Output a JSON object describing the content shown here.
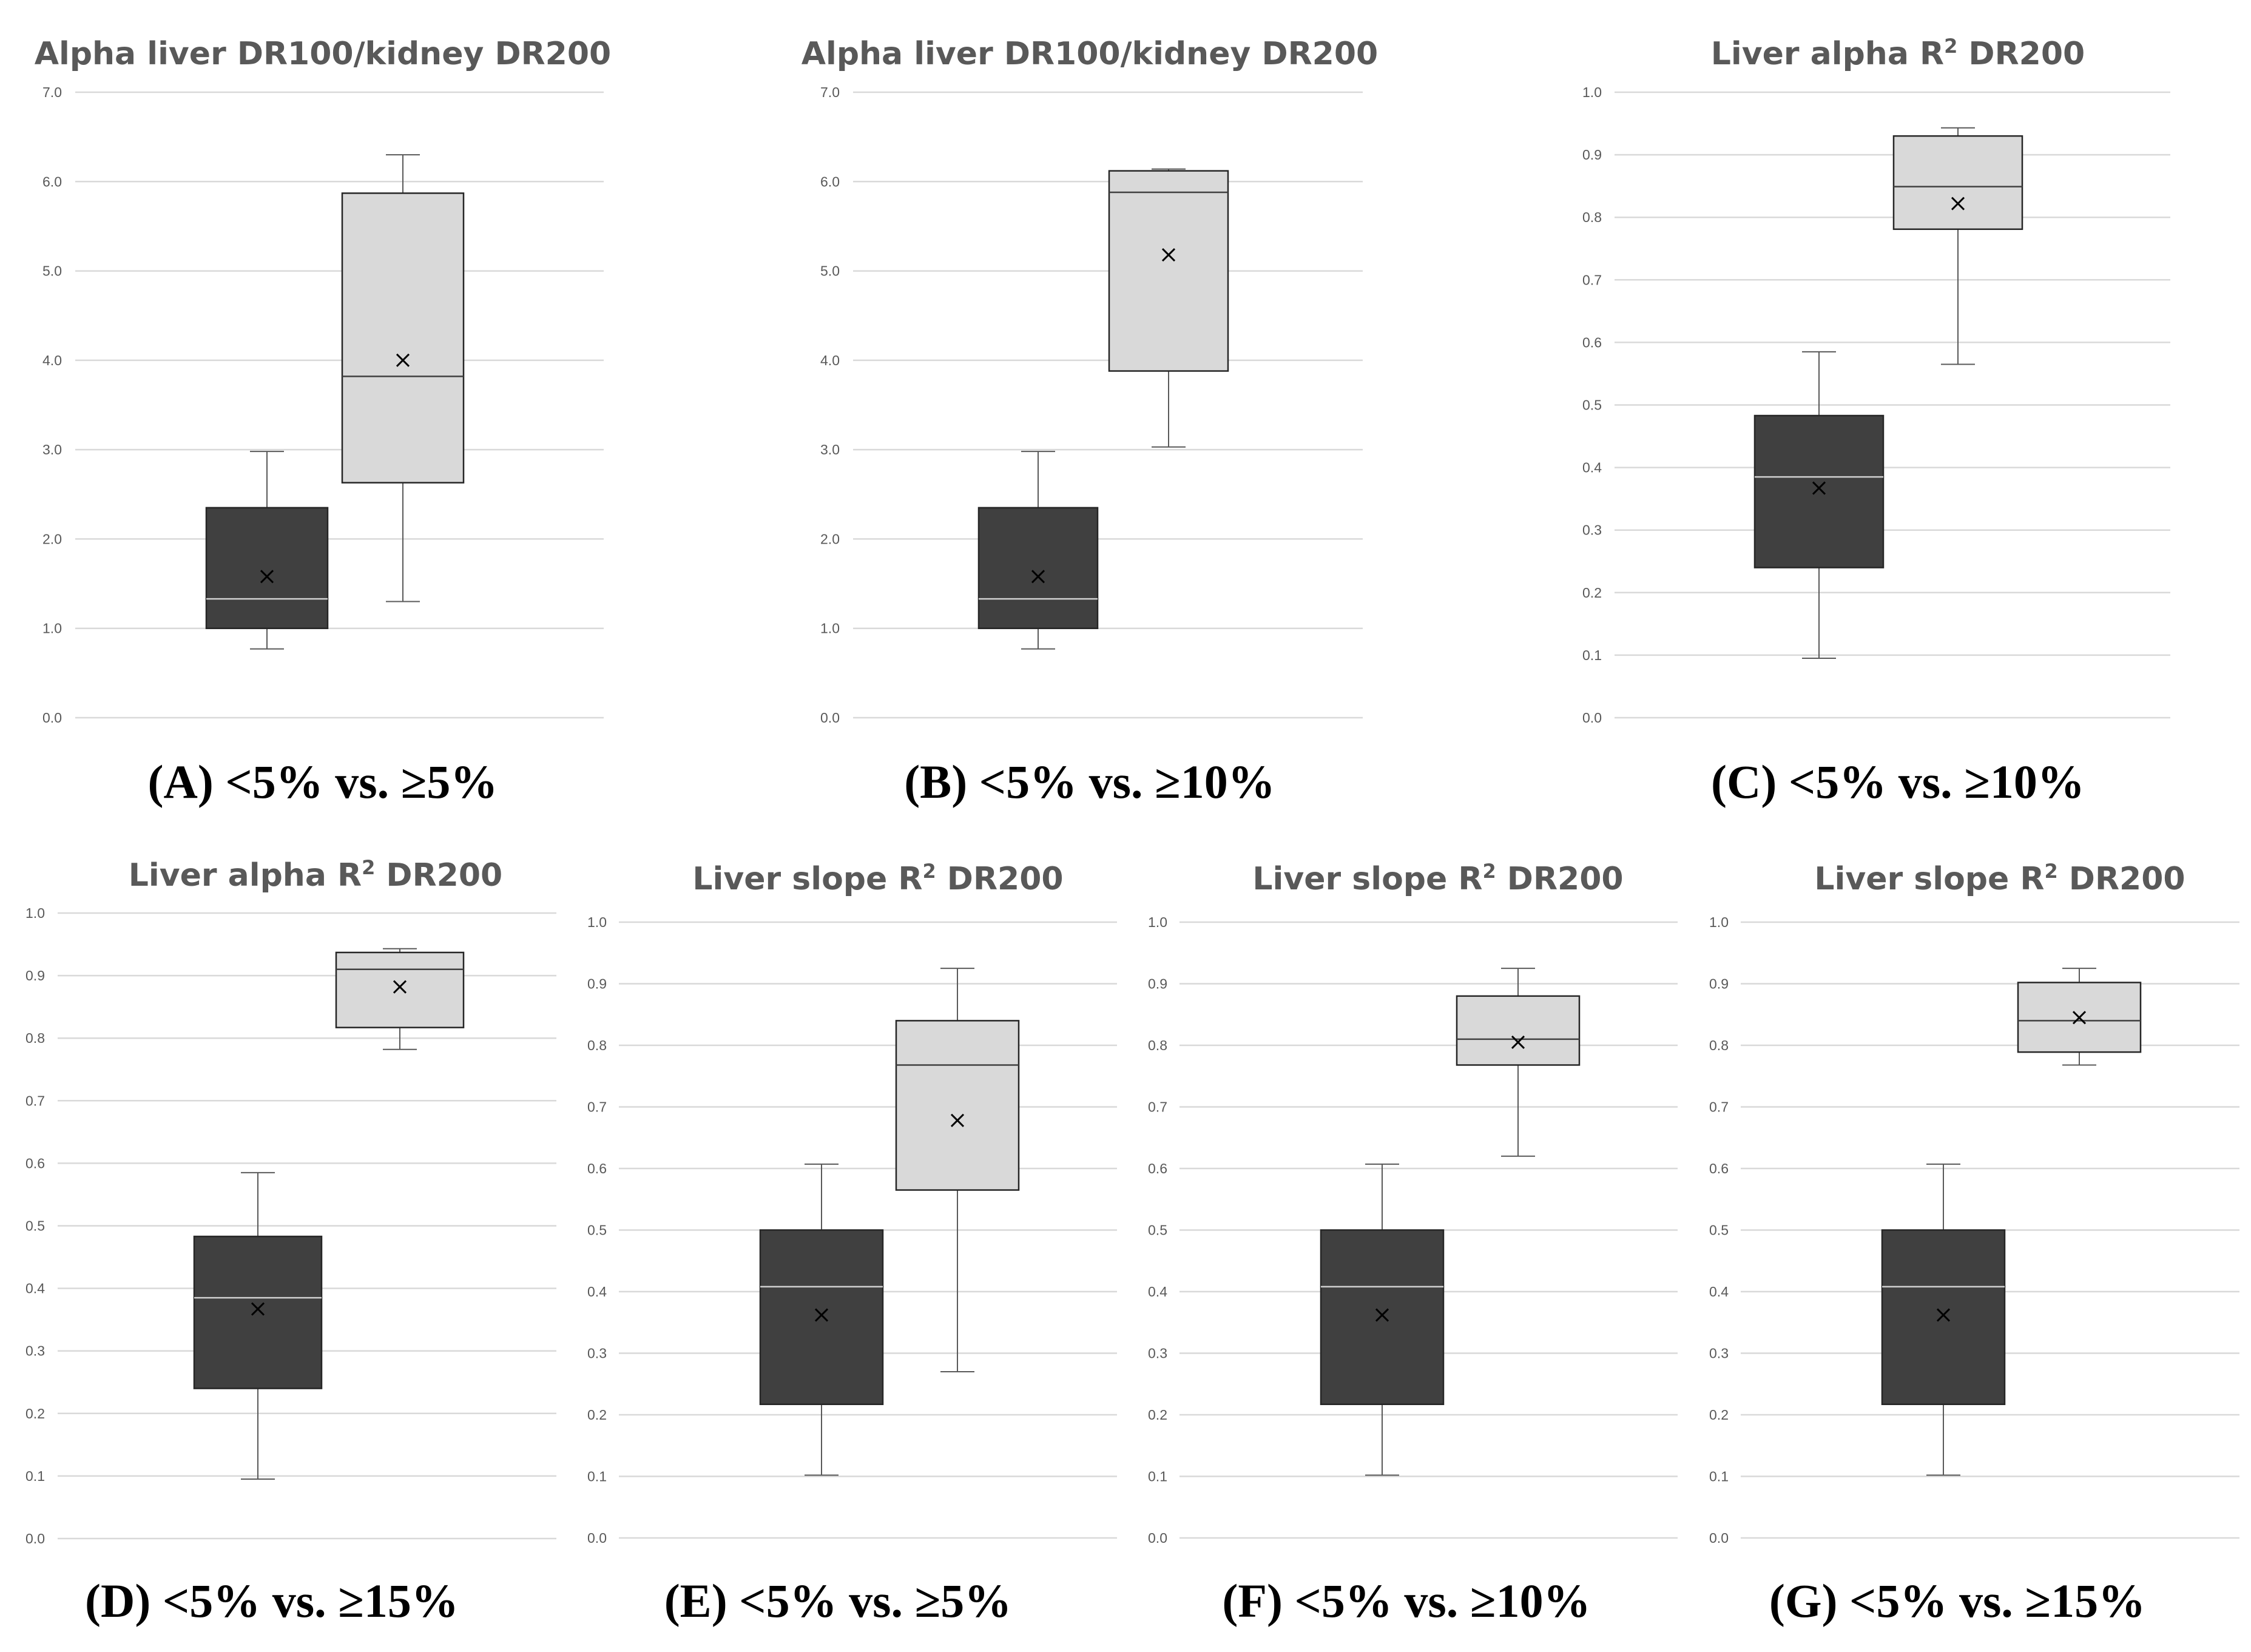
{
  "colors": {
    "group_low": "#404040",
    "group_high": "#d9d9d9",
    "grid": "#d9d9d9",
    "axis_text": "#595959"
  },
  "chart_data": [
    {
      "type": "box",
      "title": "Alpha liver DR100/kidney DR200",
      "title_parts": [
        "Alpha liver DR100/kidney DR200"
      ],
      "caption": "(A) <5% vs. ≥5%",
      "ylim": [
        0,
        7
      ],
      "yticks": [
        "0.0",
        "1.0",
        "2.0",
        "3.0",
        "4.0",
        "5.0",
        "6.0",
        "7.0"
      ],
      "grid": true,
      "boxes": [
        {
          "color": "dark",
          "min": 0.77,
          "q1": 1.0,
          "median": 1.33,
          "q3": 2.35,
          "max": 2.98,
          "mean": 1.58
        },
        {
          "color": "light",
          "min": 1.3,
          "q1": 2.63,
          "median": 3.82,
          "q3": 5.87,
          "max": 6.3,
          "mean": 4.0
        }
      ]
    },
    {
      "type": "box",
      "title": "Alpha liver DR100/kidney DR200",
      "title_parts": [
        "Alpha liver DR100/kidney DR200"
      ],
      "caption": "(B) <5% vs. ≥10%",
      "ylim": [
        0,
        7
      ],
      "yticks": [
        "0.0",
        "1.0",
        "2.0",
        "3.0",
        "4.0",
        "5.0",
        "6.0",
        "7.0"
      ],
      "grid": true,
      "boxes": [
        {
          "color": "dark",
          "min": 0.77,
          "q1": 1.0,
          "median": 1.33,
          "q3": 2.35,
          "max": 2.98,
          "mean": 1.58
        },
        {
          "color": "light",
          "min": 3.03,
          "q1": 3.88,
          "median": 5.88,
          "q3": 6.12,
          "max": 6.14,
          "mean": 5.18
        }
      ]
    },
    {
      "type": "box",
      "title": "Liver alpha R² DR200",
      "title_parts": [
        "Liver  alpha R",
        "2",
        " DR200"
      ],
      "caption": "(C) <5% vs. ≥10%",
      "ylim": [
        0,
        1
      ],
      "yticks": [
        "0.0",
        "0.1",
        "0.2",
        "0.3",
        "0.4",
        "0.5",
        "0.6",
        "0.7",
        "0.8",
        "0.9",
        "1.0"
      ],
      "grid": true,
      "boxes": [
        {
          "color": "dark",
          "min": 0.095,
          "q1": 0.24,
          "median": 0.385,
          "q3": 0.483,
          "max": 0.585,
          "mean": 0.367
        },
        {
          "color": "light",
          "min": 0.565,
          "q1": 0.781,
          "median": 0.849,
          "q3": 0.93,
          "max": 0.943,
          "mean": 0.822
        }
      ]
    },
    {
      "type": "box",
      "title": "Liver alpha R² DR200",
      "title_parts": [
        "Liver  alpha R",
        "2",
        " DR200"
      ],
      "caption": "(D) <5% vs. ≥15%",
      "ylim": [
        0,
        1
      ],
      "yticks": [
        "0.0",
        "0.1",
        "0.2",
        "0.3",
        "0.4",
        "0.5",
        "0.6",
        "0.7",
        "0.8",
        "0.9",
        "1.0"
      ],
      "grid": true,
      "boxes": [
        {
          "color": "dark",
          "min": 0.095,
          "q1": 0.24,
          "median": 0.385,
          "q3": 0.483,
          "max": 0.585,
          "mean": 0.367
        },
        {
          "color": "light",
          "min": 0.782,
          "q1": 0.817,
          "median": 0.91,
          "q3": 0.937,
          "max": 0.943,
          "mean": 0.882
        }
      ]
    },
    {
      "type": "box",
      "title": "Liver slope R² DR200",
      "title_parts": [
        "Liver slope R",
        "2",
        " DR200"
      ],
      "caption": "(E) <5% vs. ≥5%",
      "ylim": [
        0,
        1
      ],
      "yticks": [
        "0.0",
        "0.1",
        "0.2",
        "0.3",
        "0.4",
        "0.5",
        "0.6",
        "0.7",
        "0.8",
        "0.9",
        "1.0"
      ],
      "grid": true,
      "boxes": [
        {
          "color": "dark",
          "min": 0.102,
          "q1": 0.217,
          "median": 0.408,
          "q3": 0.5,
          "max": 0.607,
          "mean": 0.362
        },
        {
          "color": "light",
          "min": 0.27,
          "q1": 0.565,
          "median": 0.768,
          "q3": 0.84,
          "max": 0.925,
          "mean": 0.678
        }
      ]
    },
    {
      "type": "box",
      "title": "Liver slope R² DR200",
      "title_parts": [
        "Liver slope R",
        "2",
        " DR200"
      ],
      "caption": "(F) <5% vs. ≥10%",
      "ylim": [
        0,
        1
      ],
      "yticks": [
        "0.0",
        "0.1",
        "0.2",
        "0.3",
        "0.4",
        "0.5",
        "0.6",
        "0.7",
        "0.8",
        "0.9",
        "1.0"
      ],
      "grid": true,
      "boxes": [
        {
          "color": "dark",
          "min": 0.102,
          "q1": 0.217,
          "median": 0.408,
          "q3": 0.5,
          "max": 0.607,
          "mean": 0.362
        },
        {
          "color": "light",
          "min": 0.62,
          "q1": 0.768,
          "median": 0.81,
          "q3": 0.88,
          "max": 0.925,
          "mean": 0.805
        }
      ]
    },
    {
      "type": "box",
      "title": "Liver slope R² DR200",
      "title_parts": [
        "Liver slope R",
        "2",
        " DR200"
      ],
      "caption": "(G) <5% vs. ≥15%",
      "ylim": [
        0,
        1
      ],
      "yticks": [
        "0.0",
        "0.1",
        "0.2",
        "0.3",
        "0.4",
        "0.5",
        "0.6",
        "0.7",
        "0.8",
        "0.9",
        "1.0"
      ],
      "grid": true,
      "boxes": [
        {
          "color": "dark",
          "min": 0.102,
          "q1": 0.217,
          "median": 0.408,
          "q3": 0.5,
          "max": 0.607,
          "mean": 0.362
        },
        {
          "color": "light",
          "min": 0.768,
          "q1": 0.789,
          "median": 0.84,
          "q3": 0.902,
          "max": 0.925,
          "mean": 0.845
        }
      ]
    }
  ]
}
